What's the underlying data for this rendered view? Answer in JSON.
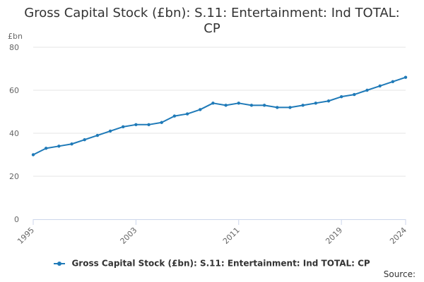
{
  "chart_data": {
    "type": "line",
    "title_lines": [
      "Gross Capital Stock (£bn): S.11: Entertainment: Ind TOTAL:",
      "CP"
    ],
    "y_unit": "£bn",
    "xlabel": "",
    "ylabel": "",
    "ylim": [
      0,
      80
    ],
    "yticks": [
      "0",
      "20",
      "40",
      "60",
      "80"
    ],
    "xlim": [
      1995,
      2024
    ],
    "xticks": [
      "1995",
      "2003",
      "2011",
      "2019",
      "2024"
    ],
    "grid": true,
    "legend_position": "bottom",
    "x": [
      1995,
      1996,
      1997,
      1998,
      1999,
      2000,
      2001,
      2002,
      2003,
      2004,
      2005,
      2006,
      2007,
      2008,
      2009,
      2010,
      2011,
      2012,
      2013,
      2014,
      2015,
      2016,
      2017,
      2018,
      2019,
      2020,
      2021,
      2022,
      2023,
      2024
    ],
    "series": [
      {
        "name": "Gross Capital Stock (£bn): S.11: Entertainment: Ind TOTAL: CP",
        "color": "#1f7ab8",
        "values": [
          30,
          33,
          34,
          35,
          37,
          39,
          41,
          43,
          44,
          44,
          45,
          48,
          49,
          51,
          54,
          53,
          54,
          53,
          53,
          52,
          52,
          53,
          54,
          55,
          57,
          58,
          60,
          62,
          64,
          66
        ]
      }
    ],
    "source_label": "Source:"
  }
}
